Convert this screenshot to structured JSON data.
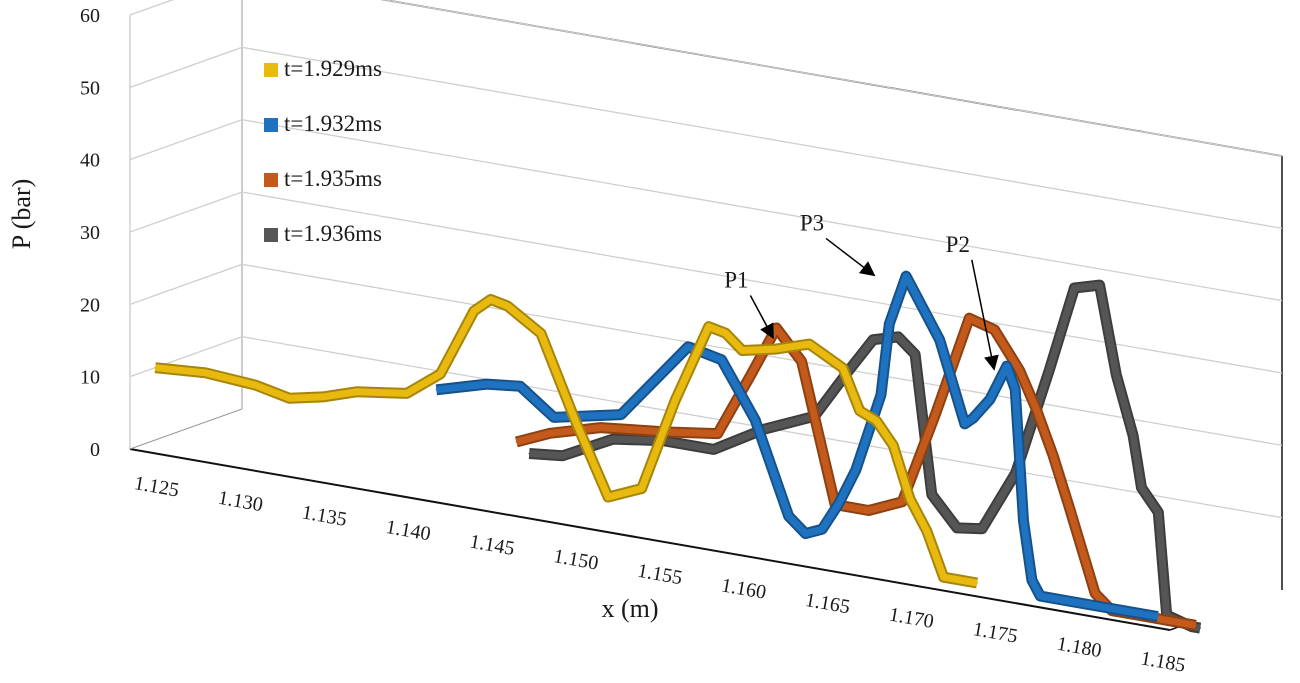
{
  "chart_data": {
    "type": "line",
    "subtype": "3d-ribbon",
    "title": "",
    "xlabel": "x (m)",
    "ylabel": "P (bar)",
    "ylim": [
      0,
      60
    ],
    "yticks": [
      "0",
      "10",
      "20",
      "30",
      "40",
      "50",
      "60"
    ],
    "xlim": [
      1.123,
      1.185
    ],
    "xticks": [
      "1.125",
      "1.130",
      "1.135",
      "1.140",
      "1.145",
      "1.150",
      "1.155",
      "1.160",
      "1.165",
      "1.170",
      "1.175",
      "1.180",
      "1.185"
    ],
    "grid": true,
    "legend": "top-left",
    "series": [
      {
        "name": "t=1.929ms",
        "color": "#e8b90f",
        "x": [
          1.123,
          1.126,
          1.129,
          1.131,
          1.133,
          1.135,
          1.138,
          1.14,
          1.142,
          1.143,
          1.144,
          1.146,
          1.148,
          1.15,
          1.152,
          1.154,
          1.156,
          1.157,
          1.158,
          1.16,
          1.162,
          1.164,
          1.165,
          1.166,
          1.167,
          1.168,
          1.169,
          1.1695,
          1.17,
          1.172
        ],
        "values": [
          10,
          10.5,
          10,
          9,
          10,
          11.5,
          12.5,
          16,
          25.5,
          27.5,
          27,
          24,
          13,
          3,
          5,
          18,
          29,
          28.5,
          26.5,
          27.5,
          29,
          26.5,
          21,
          20,
          17,
          10,
          6,
          3,
          0,
          0
        ]
      },
      {
        "name": "t=1.932ms",
        "color": "#1f72bf",
        "x": [
          1.14,
          1.143,
          1.145,
          1.147,
          1.149,
          1.151,
          1.153,
          1.155,
          1.157,
          1.159,
          1.161,
          1.162,
          1.163,
          1.164,
          1.165,
          1.1665,
          1.167,
          1.168,
          1.17,
          1.1715,
          1.172,
          1.173,
          1.174,
          1.1745,
          1.175,
          1.1755,
          1.176,
          1.178,
          1.183
        ],
        "values": [
          14,
          16,
          16.5,
          13,
          14,
          15,
          20.5,
          26,
          25,
          17.5,
          5,
          3,
          4,
          8,
          13,
          24,
          34,
          41,
          33,
          22,
          23,
          26,
          31,
          28,
          10,
          2,
          0,
          0,
          0
        ]
      },
      {
        "name": "t=1.935ms",
        "color": "#c35a1b",
        "x": [
          1.145,
          1.147,
          1.15,
          1.154,
          1.157,
          1.159,
          1.1605,
          1.162,
          1.164,
          1.166,
          1.168,
          1.17,
          1.172,
          1.1735,
          1.175,
          1.176,
          1.177,
          1.178,
          1.1795,
          1.1805,
          1.181,
          1.1815,
          1.182,
          1.184,
          1.1855
        ],
        "values": [
          9,
          11,
          13,
          14,
          15,
          24,
          31,
          27,
          8,
          8,
          10,
          23,
          37,
          36,
          31,
          26,
          20,
          13,
          2,
          0,
          0,
          0,
          0,
          0,
          0
        ]
      },
      {
        "name": "t=1.936ms",
        "color": "#555555",
        "x": [
          1.146,
          1.148,
          1.151,
          1.154,
          1.157,
          1.16,
          1.163,
          1.165,
          1.1665,
          1.168,
          1.169,
          1.17,
          1.1715,
          1.173,
          1.175,
          1.177,
          1.1785,
          1.18,
          1.181,
          1.182,
          1.1825,
          1.1835,
          1.184,
          1.1855,
          1.186
        ],
        "values": [
          8,
          8.5,
          12,
          13,
          13,
          17,
          20,
          27,
          32,
          33,
          31,
          12,
          8,
          8.5,
          17,
          32,
          44,
          45,
          33,
          25,
          18,
          15,
          1,
          0,
          0
        ]
      }
    ],
    "annotations": [
      {
        "label": "P1",
        "x": 1.1605,
        "y": 29
      },
      {
        "label": "P2",
        "x": 1.1737,
        "y": 30
      },
      {
        "label": "P3",
        "x": 1.1665,
        "y": 40
      }
    ]
  }
}
